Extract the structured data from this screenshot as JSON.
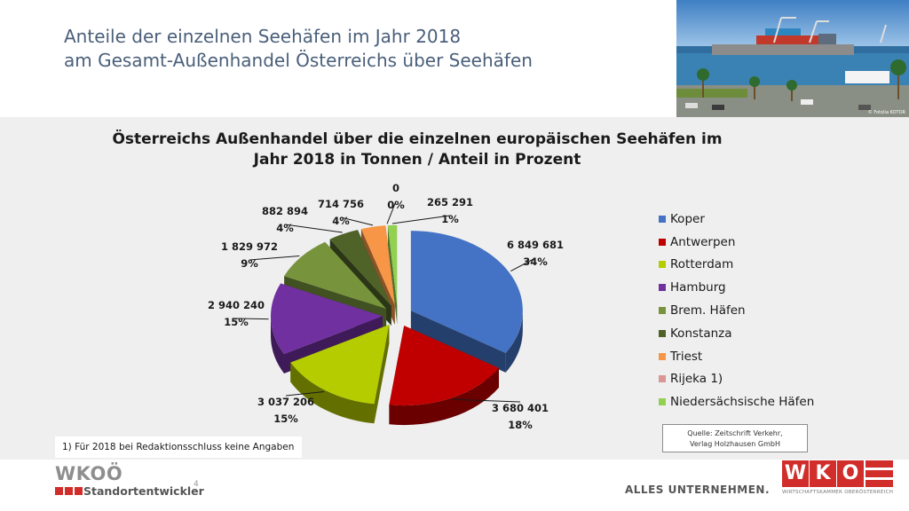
{
  "slide": {
    "title_line1": "Anteile der einzelnen Seehäfen im Jahr 2018",
    "title_line2": "am Gesamt-Außenhandel Österreichs über Seehäfen",
    "photo_credit": "© Fotolia KOTOR",
    "page_number": "4",
    "footnote": "1) Für 2018 bei Redaktionsschluss keine Angaben",
    "source_line1": "Quelle: Zeitschrift Verkehr,",
    "source_line2": "Verlag Holzhausen GmbH",
    "tagline": "ALLES UNTERNEHMEN.",
    "logo_left_name": "WKOÖ",
    "logo_left_sub": "Standortentwickler",
    "logo_right_letters": [
      "W",
      "K",
      "O"
    ],
    "logo_right_sub": "WIRTSCHAFTSKAMMER OBERÖSTERREICH"
  },
  "chart_data": {
    "type": "pie",
    "title_line1": "Österreichs Außenhandel über die einzelnen europäischen Seehäfen  im",
    "title_line2": "Jahr 2018 in Tonnen / Anteil in Prozent",
    "unit": "Tonnen",
    "legend_position": "right",
    "slices": [
      {
        "name": "Koper",
        "value": 6849681,
        "value_label": "6 849 681",
        "percent_label": "34%",
        "color": "#4472c4"
      },
      {
        "name": "Antwerpen",
        "value": 3680401,
        "value_label": "3 680 401",
        "percent_label": "18%",
        "color": "#c00000"
      },
      {
        "name": "Rotterdam",
        "value": 3037206,
        "value_label": "3 037 206",
        "percent_label": "15%",
        "color": "#b4cc00"
      },
      {
        "name": "Hamburg",
        "value": 2940240,
        "value_label": "2 940 240",
        "percent_label": "15%",
        "color": "#7030a0"
      },
      {
        "name": "Brem. Häfen",
        "value": 1829972,
        "value_label": "1 829 972",
        "percent_label": "9%",
        "color": "#77933c"
      },
      {
        "name": "Konstanza",
        "value": 882894,
        "value_label": "882 894",
        "percent_label": "4%",
        "color": "#4f6228"
      },
      {
        "name": "Triest",
        "value": 714756,
        "value_label": "714 756",
        "percent_label": "4%",
        "color": "#f79646"
      },
      {
        "name": "Rijeka 1)",
        "value": 0,
        "value_label": "0",
        "percent_label": "0%",
        "color": "#d99694"
      },
      {
        "name": "Niedersächsische Häfen",
        "value": 265291,
        "value_label": "265 291",
        "percent_label": "1%",
        "color": "#92d050"
      }
    ]
  }
}
